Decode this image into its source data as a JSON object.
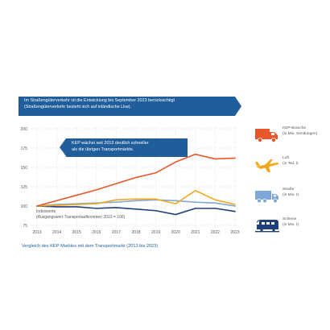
{
  "banner_top": {
    "line1": "Im Straßengüterverkehr ist die Entwicklung bis September 2023 berücksichtigt",
    "line2": "(Straßengüterverkehr bezieht sich auf inländische Lkw)."
  },
  "callout": {
    "line1": "KEP wächst seit 2013 deutlich schneller",
    "line2": "als die übrigen Transportmärkte."
  },
  "index_note": {
    "line1": "Indexwerte",
    "line2": "(Ausgangswert Transportaufkommen 2013 = 100)"
  },
  "caption": "Vergleich des KEP-Marktes mit dem Transportmarkt (2013 bis 2023)",
  "colors": {
    "kep": "#e8562b",
    "luft": "#f2a81d",
    "strasse": "#7fa8d8",
    "schiene": "#1f3f7a",
    "grid": "#d6d6d6",
    "banner": "#1f5d9b"
  },
  "legend": [
    {
      "name": "KEP-Branche",
      "unit": "(in Mio. Sendungen)",
      "icon": "delivery-truck-icon"
    },
    {
      "name": "Luft",
      "unit": "(in Tsd. t)",
      "icon": "airplane-icon"
    },
    {
      "name": "Straße",
      "unit": "(in Mio. t)",
      "icon": "lorry-icon"
    },
    {
      "name": "Schiene",
      "unit": "(in Mio. t)",
      "icon": "train-icon"
    }
  ],
  "chart_data": {
    "type": "line",
    "x": [
      2013,
      2014,
      2015,
      2016,
      2017,
      2018,
      2019,
      2020,
      2021,
      2022,
      2023
    ],
    "x_tick_labels": [
      "2013",
      "2014",
      "2015",
      "2016",
      "2017",
      "2018",
      "2019",
      "2020",
      "2021",
      "2022",
      "2023"
    ],
    "y_ticks": [
      75,
      100,
      125,
      150,
      175,
      200
    ],
    "y_tick_labels": [
      "75",
      "100",
      "125",
      "150",
      "175",
      "200"
    ],
    "ylim": [
      75,
      200
    ],
    "xlim": [
      2013,
      2023
    ],
    "grid": true,
    "legend_position": "right",
    "series": [
      {
        "name": "KEP-Branche",
        "color": "#e8562b",
        "values": [
          100,
          107,
          114,
          121,
          129,
          137,
          143,
          157,
          167,
          161,
          162
        ]
      },
      {
        "name": "Luft",
        "color": "#f2a81d",
        "values": [
          100,
          101,
          102,
          103,
          108,
          109,
          109,
          103,
          120,
          108,
          102
        ]
      },
      {
        "name": "Straße",
        "color": "#7fa8d8",
        "values": [
          100,
          102,
          103,
          104,
          105,
          107,
          108,
          107,
          105,
          104,
          100
        ]
      },
      {
        "name": "Schiene",
        "color": "#1f3f7a",
        "values": [
          100,
          99,
          99,
          97,
          98,
          96,
          94,
          89,
          97,
          97,
          93
        ]
      }
    ]
  }
}
